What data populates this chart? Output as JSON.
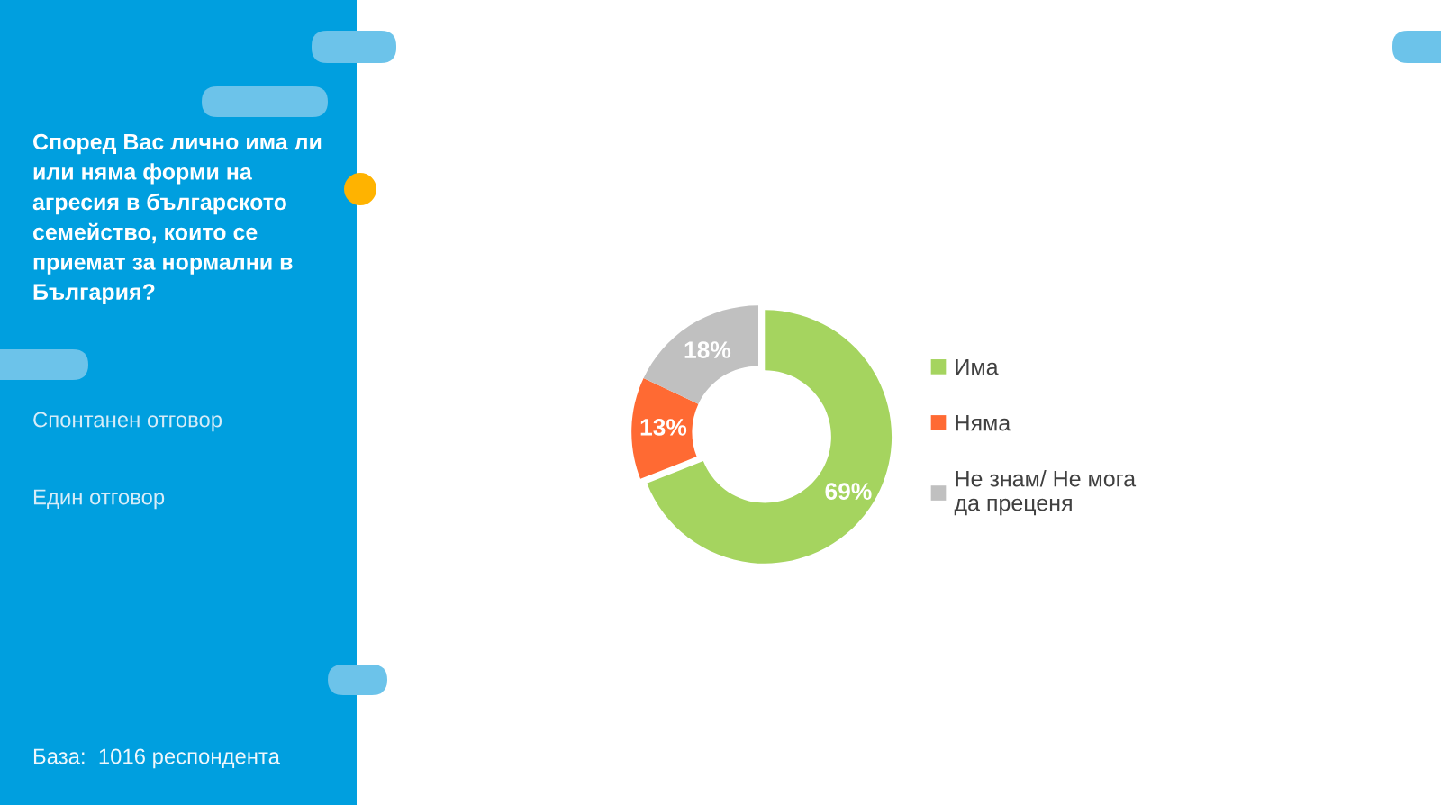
{
  "chart_data": {
    "type": "donut",
    "title": "Според Вас лично има ли\nили няма форми на\nагресия в българското\nсемейство, които се\nприемат за нормални в\nБългария?",
    "categories": [
      "Има",
      "Няма",
      "Не знам/ Не мога\nда преценя"
    ],
    "values": [
      69,
      13,
      18
    ],
    "colors": [
      "#a5d45f",
      "#ff6a33",
      "#c0c0c0"
    ],
    "value_labels": [
      "69%",
      "13%",
      "18%"
    ],
    "legend": "right",
    "annotations": [
      "Спонтанен отговор",
      "Един отговор",
      "База:  1016 респондента"
    ]
  }
}
